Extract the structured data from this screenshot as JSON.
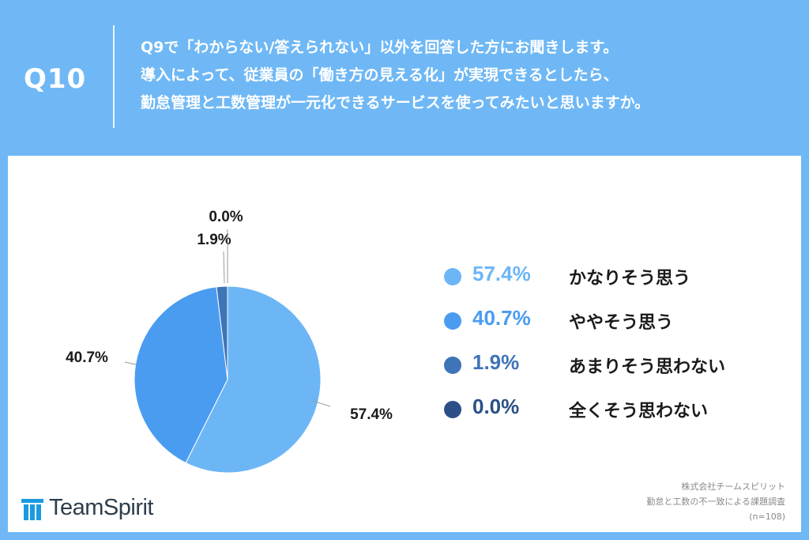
{
  "header": {
    "q_label": "Q10",
    "question_lines": [
      "Q9で「わからない/答えられない」以外を回答した方にお聞きします。",
      "導入によって、従業員の「働き方の見える化」が実現できるとしたら、",
      "勤怠管理と工数管理が一元化できるサービスを使ってみたいと思いますか。"
    ]
  },
  "chart_data": {
    "type": "pie",
    "slices": [
      {
        "label": "かなりそう思う",
        "value": 57.4,
        "value_label": "57.4%",
        "color": "#6cb6f6"
      },
      {
        "label": "ややそう思う",
        "value": 40.7,
        "value_label": "40.7%",
        "color": "#4a9cf0"
      },
      {
        "label": "あまりそう思わない",
        "value": 1.9,
        "value_label": "1.9%",
        "color": "#3e74b8"
      },
      {
        "label": "全くそう思わない",
        "value": 0.0,
        "value_label": "0.0%",
        "color": "#2b4f87"
      }
    ],
    "legend_position": "right"
  },
  "footer": {
    "logo_text": "TeamSpirit",
    "source_lines": [
      "株式会社チームスピリット",
      "勤怠と工数の不一致による課題調査",
      "(n=108)"
    ]
  }
}
